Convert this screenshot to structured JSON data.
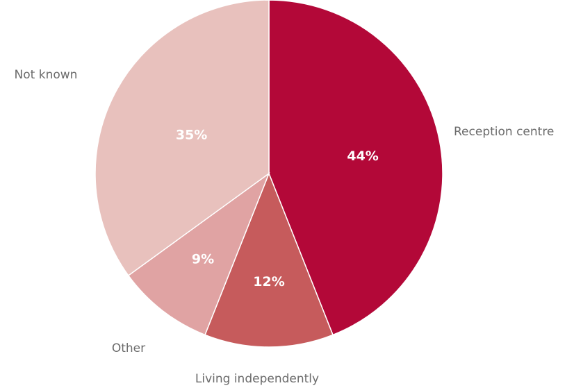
{
  "chart_data": {
    "type": "pie",
    "categories": [
      "Reception centre",
      "Living independently",
      "Other",
      "Not known"
    ],
    "values": [
      44,
      12,
      9,
      35
    ],
    "value_labels": [
      "44%",
      "12%",
      "9%",
      "35%"
    ],
    "colors": [
      "#b30838",
      "#c65b5c",
      "#e0a3a3",
      "#e8c1bd"
    ],
    "start": "12 o'clock",
    "direction": "clockwise"
  }
}
